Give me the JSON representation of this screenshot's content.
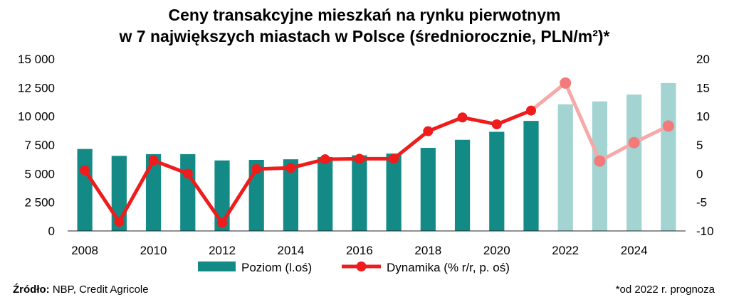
{
  "chart_data": {
    "type": "bar",
    "title": [
      "Ceny transakcyjne mieszkań na rynku pierwotnym",
      "w 7 największych miastach w Polsce (średniorocznie, PLN/m²)*"
    ],
    "x": [
      2008,
      2009,
      2010,
      2011,
      2012,
      2013,
      2014,
      2015,
      2016,
      2017,
      2018,
      2019,
      2020,
      2021,
      2022,
      2023,
      2024,
      2025
    ],
    "x_ticks": [
      "2008",
      "2010",
      "2012",
      "2014",
      "2016",
      "2018",
      "2020",
      "2022",
      "2024"
    ],
    "y_left": {
      "lim": [
        0,
        15000
      ],
      "ticks": [
        "0",
        "2 500",
        "5 000",
        "7 500",
        "10 000",
        "12 500",
        "15 000"
      ]
    },
    "y_right": {
      "lim": [
        -10,
        20
      ],
      "ticks": [
        "-10",
        "-5",
        "0",
        "5",
        "10",
        "15",
        "20"
      ]
    },
    "forecast_from": 2022,
    "series": [
      {
        "name": "Poziom (l.oś)",
        "kind": "bar",
        "axis": "left",
        "color": "#148a86",
        "forecast_color": "#a3d4d2",
        "values": [
          7150,
          6550,
          6700,
          6700,
          6150,
          6200,
          6250,
          6450,
          6600,
          6750,
          7250,
          7950,
          8650,
          9600,
          11050,
          11300,
          11900,
          12900
        ]
      },
      {
        "name": "Dynamika (% r/r, p. oś)",
        "kind": "line",
        "axis": "right",
        "color": "#ee1c1c",
        "forecast_color": "#f7a8a8",
        "values": [
          0.6,
          -8.4,
          2.3,
          0.0,
          -8.6,
          0.8,
          1.0,
          2.5,
          2.6,
          2.6,
          7.4,
          9.8,
          8.6,
          11.0,
          15.8,
          2.2,
          5.4,
          8.3
        ]
      }
    ],
    "legend": "bottom-center",
    "grid": false
  },
  "footer": {
    "source_label": "Źródło:",
    "source_text": " NBP, Credit Agricole",
    "note": "*od 2022 r. prognoza"
  }
}
